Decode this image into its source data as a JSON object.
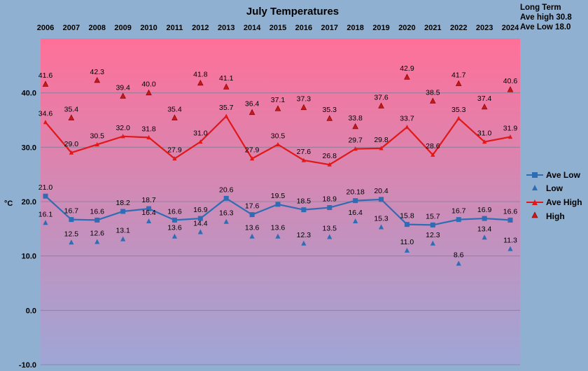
{
  "chart_data": {
    "type": "line",
    "title": "July Temperatures",
    "ylabel": "°C",
    "ylim": [
      -10,
      50
    ],
    "yticks": [
      "-10.0",
      "0.0",
      "10.0",
      "20.0",
      "30.0",
      "40.0"
    ],
    "categories": [
      "2006",
      "2007",
      "2008",
      "2009",
      "2010",
      "2011",
      "2012",
      "2013",
      "2014",
      "2015",
      "2016",
      "2017",
      "2018",
      "2019",
      "2020",
      "2021",
      "2022",
      "2023",
      "2024"
    ],
    "series": [
      {
        "name": "Ave Low",
        "kind": "line",
        "color": "#2e6db4",
        "values": [
          21.0,
          16.7,
          16.6,
          18.2,
          18.7,
          16.6,
          16.9,
          20.6,
          17.6,
          19.5,
          18.5,
          18.9,
          20.18,
          20.4,
          15.8,
          15.7,
          16.7,
          16.9,
          16.6
        ],
        "labels": [
          "21.0",
          "16.7",
          "16.6",
          "18.2",
          "18.7",
          "16.6",
          "16.9",
          "20.6",
          "17.6",
          "19.5",
          "18.5",
          "18.9",
          "20.18",
          "20.4",
          "15.8",
          "15.7",
          "16.7",
          "16.9",
          "16.6"
        ]
      },
      {
        "name": "Low",
        "kind": "marker",
        "color": "#2e6db4",
        "values": [
          16.1,
          12.5,
          12.6,
          13.1,
          16.4,
          13.6,
          14.4,
          16.3,
          13.6,
          13.6,
          12.3,
          13.5,
          16.4,
          15.3,
          11.0,
          12.3,
          8.6,
          13.4,
          11.3
        ],
        "labels": [
          "16.1",
          "12.5",
          "12.6",
          "13.1",
          "16.4",
          "13.6",
          "14.4",
          "16.3",
          "13.6",
          "13.6",
          "12.3",
          "13.5",
          "16.4",
          "15.3",
          "11.0",
          "12.3",
          "8.6",
          "13.4",
          "11.3"
        ]
      },
      {
        "name": "Ave High",
        "kind": "line",
        "color": "#e01818",
        "values": [
          34.6,
          29.0,
          30.5,
          32.0,
          31.8,
          27.9,
          31.0,
          35.7,
          27.9,
          30.5,
          27.6,
          26.8,
          29.7,
          29.8,
          33.7,
          28.6,
          35.3,
          31.0,
          31.9
        ],
        "labels": [
          "34.6",
          "29.0",
          "30.5",
          "32.0",
          "31.8",
          "27.9",
          "31.0",
          "35.7",
          "27.9",
          "30.5",
          "27.6",
          "26.8",
          "29.7",
          "29.8",
          "33.7",
          "28.6",
          "35.3",
          "31.0",
          "31.9"
        ]
      },
      {
        "name": "High",
        "kind": "marker",
        "color": "#c81818",
        "values": [
          41.6,
          35.4,
          42.3,
          39.4,
          40.0,
          35.4,
          41.8,
          41.1,
          36.4,
          37.1,
          37.3,
          35.3,
          33.8,
          37.6,
          42.9,
          38.5,
          41.7,
          37.4,
          40.6
        ],
        "labels": [
          "41.6",
          "35.4",
          "42.3",
          "39.4",
          "40.0",
          "35.4",
          "41.8",
          "41.1",
          "36.4",
          "37.1",
          "37.3",
          "35.3",
          "33.8",
          "37.6",
          "42.9",
          "38.5",
          "41.7",
          "37.4",
          "40.6"
        ]
      }
    ],
    "annotations": [
      "Long Term",
      "Ave high  30.8",
      "Ave Low  18.0"
    ],
    "legend_position": "right",
    "grid": true,
    "background": {
      "top": "#ff7098",
      "bottom": "#9ea6d6"
    }
  }
}
